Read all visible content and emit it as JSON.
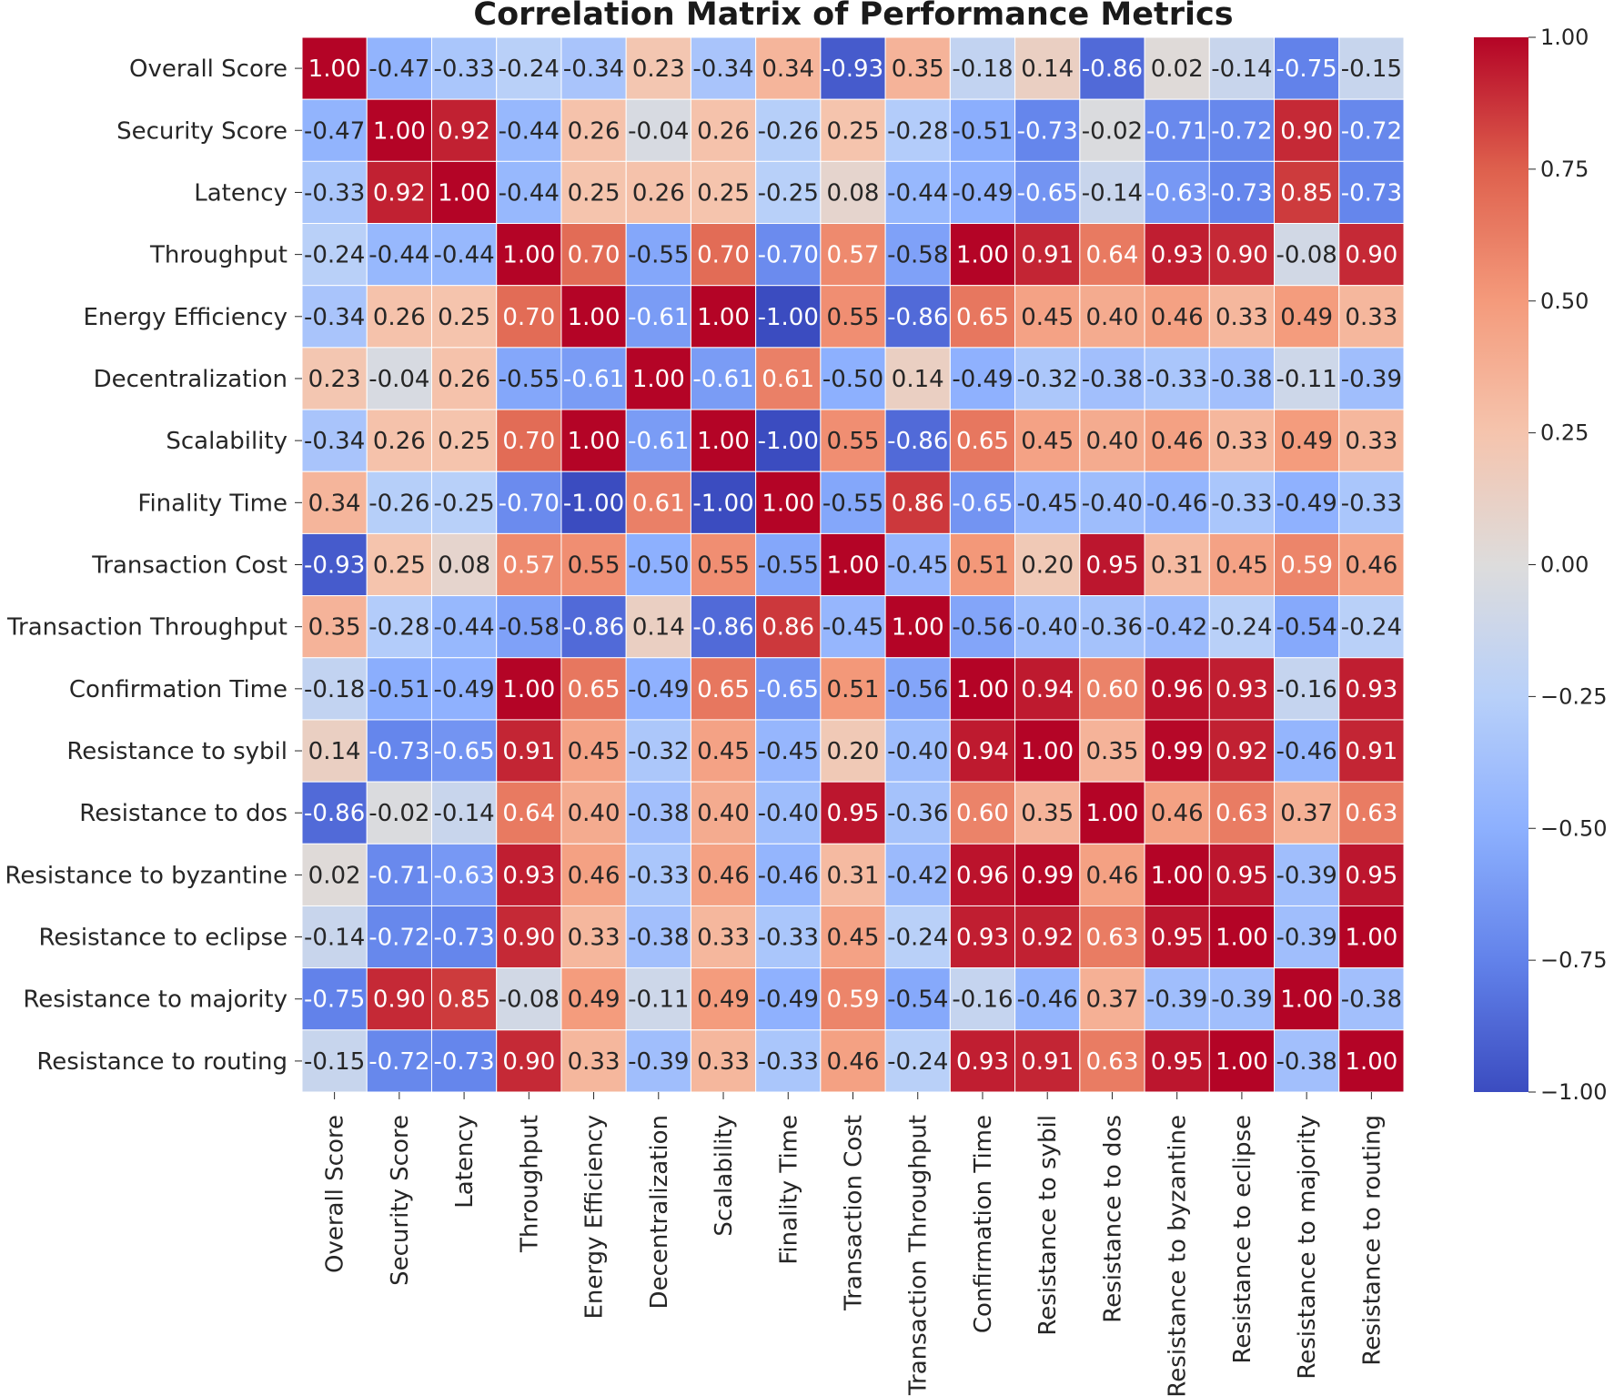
{
  "chart_data": {
    "type": "heatmap",
    "title": "Correlation Matrix of Performance Metrics",
    "colormap": "coolwarm",
    "vmin": -1.0,
    "vmax": 1.0,
    "labels": [
      "Overall Score",
      "Security Score",
      "Latency",
      "Throughput",
      "Energy Efficiency",
      "Decentralization",
      "Scalability",
      "Finality Time",
      "Transaction Cost",
      "Transaction Throughput",
      "Confirmation Time",
      "Resistance to sybil",
      "Resistance to dos",
      "Resistance to byzantine",
      "Resistance to eclipse",
      "Resistance to majority",
      "Resistance to routing"
    ],
    "matrix": [
      [
        1.0,
        -0.47,
        -0.33,
        -0.24,
        -0.34,
        0.23,
        -0.34,
        0.34,
        -0.93,
        0.35,
        -0.18,
        0.14,
        -0.86,
        0.02,
        -0.14,
        -0.75,
        -0.15
      ],
      [
        -0.47,
        1.0,
        0.92,
        -0.44,
        0.26,
        -0.04,
        0.26,
        -0.26,
        0.25,
        -0.28,
        -0.51,
        -0.73,
        -0.02,
        -0.71,
        -0.72,
        0.9,
        -0.72
      ],
      [
        -0.33,
        0.92,
        1.0,
        -0.44,
        0.25,
        0.26,
        0.25,
        -0.25,
        0.08,
        -0.44,
        -0.49,
        -0.65,
        -0.14,
        -0.63,
        -0.73,
        0.85,
        -0.73
      ],
      [
        -0.24,
        -0.44,
        -0.44,
        1.0,
        0.7,
        -0.55,
        0.7,
        -0.7,
        0.57,
        -0.58,
        1.0,
        0.91,
        0.64,
        0.93,
        0.9,
        -0.08,
        0.9
      ],
      [
        -0.34,
        0.26,
        0.25,
        0.7,
        1.0,
        -0.61,
        1.0,
        -1.0,
        0.55,
        -0.86,
        0.65,
        0.45,
        0.4,
        0.46,
        0.33,
        0.49,
        0.33
      ],
      [
        0.23,
        -0.04,
        0.26,
        -0.55,
        -0.61,
        1.0,
        -0.61,
        0.61,
        -0.5,
        0.14,
        -0.49,
        -0.32,
        -0.38,
        -0.33,
        -0.38,
        -0.11,
        -0.39
      ],
      [
        -0.34,
        0.26,
        0.25,
        0.7,
        1.0,
        -0.61,
        1.0,
        -1.0,
        0.55,
        -0.86,
        0.65,
        0.45,
        0.4,
        0.46,
        0.33,
        0.49,
        0.33
      ],
      [
        0.34,
        -0.26,
        -0.25,
        -0.7,
        -1.0,
        0.61,
        -1.0,
        1.0,
        -0.55,
        0.86,
        -0.65,
        -0.45,
        -0.4,
        -0.46,
        -0.33,
        -0.49,
        -0.33
      ],
      [
        -0.93,
        0.25,
        0.08,
        0.57,
        0.55,
        -0.5,
        0.55,
        -0.55,
        1.0,
        -0.45,
        0.51,
        0.2,
        0.95,
        0.31,
        0.45,
        0.59,
        0.46
      ],
      [
        0.35,
        -0.28,
        -0.44,
        -0.58,
        -0.86,
        0.14,
        -0.86,
        0.86,
        -0.45,
        1.0,
        -0.56,
        -0.4,
        -0.36,
        -0.42,
        -0.24,
        -0.54,
        -0.24
      ],
      [
        -0.18,
        -0.51,
        -0.49,
        1.0,
        0.65,
        -0.49,
        0.65,
        -0.65,
        0.51,
        -0.56,
        1.0,
        0.94,
        0.6,
        0.96,
        0.93,
        -0.16,
        0.93
      ],
      [
        0.14,
        -0.73,
        -0.65,
        0.91,
        0.45,
        -0.32,
        0.45,
        -0.45,
        0.2,
        -0.4,
        0.94,
        1.0,
        0.35,
        0.99,
        0.92,
        -0.46,
        0.91
      ],
      [
        -0.86,
        -0.02,
        -0.14,
        0.64,
        0.4,
        -0.38,
        0.4,
        -0.4,
        0.95,
        -0.36,
        0.6,
        0.35,
        1.0,
        0.46,
        0.63,
        0.37,
        0.63
      ],
      [
        0.02,
        -0.71,
        -0.63,
        0.93,
        0.46,
        -0.33,
        0.46,
        -0.46,
        0.31,
        -0.42,
        0.96,
        0.99,
        0.46,
        1.0,
        0.95,
        -0.39,
        0.95
      ],
      [
        -0.14,
        -0.72,
        -0.73,
        0.9,
        0.33,
        -0.38,
        0.33,
        -0.33,
        0.45,
        -0.24,
        0.93,
        0.92,
        0.63,
        0.95,
        1.0,
        -0.39,
        1.0
      ],
      [
        -0.75,
        0.9,
        0.85,
        -0.08,
        0.49,
        -0.11,
        0.49,
        -0.49,
        0.59,
        -0.54,
        -0.16,
        -0.46,
        0.37,
        -0.39,
        -0.39,
        1.0,
        -0.38
      ],
      [
        -0.15,
        -0.72,
        -0.73,
        0.9,
        0.33,
        -0.39,
        0.33,
        -0.33,
        0.46,
        -0.24,
        0.93,
        0.91,
        0.63,
        0.95,
        1.0,
        -0.38,
        1.0
      ]
    ],
    "colorbar_ticks": [
      1.0,
      0.75,
      0.5,
      0.25,
      0.0,
      -0.25,
      -0.5,
      -0.75,
      -1.0
    ],
    "colorbar_tick_labels": [
      "1.00",
      "0.75",
      "0.50",
      "0.25",
      "0.00",
      "−0.25",
      "−0.50",
      "−0.75",
      "−1.00"
    ],
    "annotations": "values shown in each cell, 2 decimals",
    "legend": "colorbar-right"
  }
}
